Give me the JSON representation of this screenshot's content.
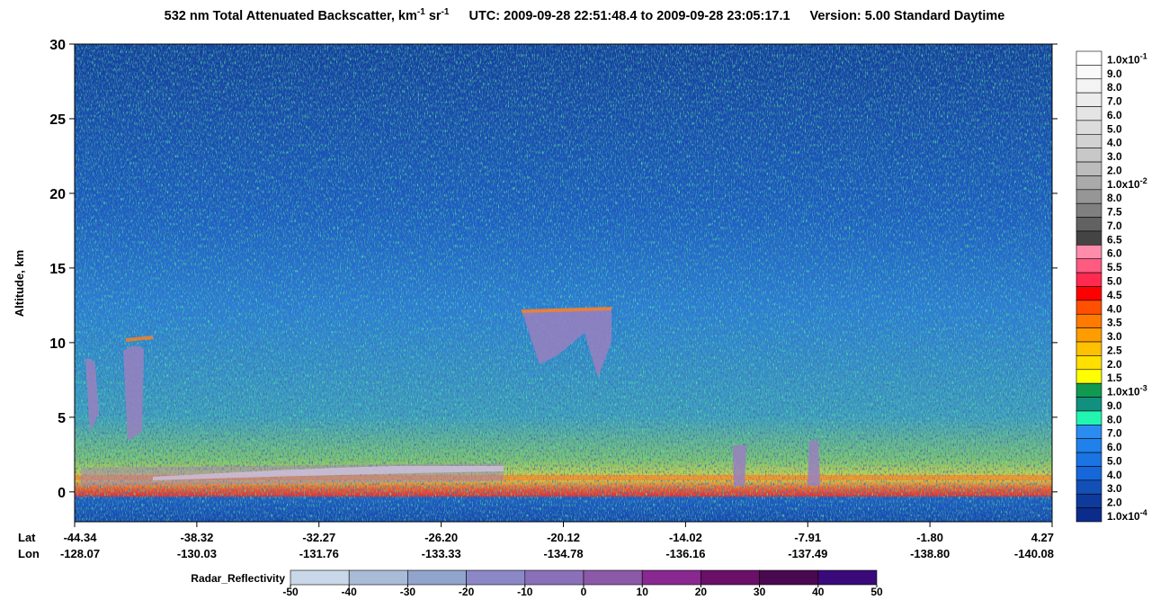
{
  "chart_data": {
    "type": "curtain",
    "title": {
      "main": "532 nm Total Attenuated Backscatter, km",
      "exp1": "-1",
      "unit2": " sr",
      "exp2": "-1",
      "utc": "UTC:  2009-09-28 22:51:48.4  to  2009-09-28 23:05:17.1",
      "version": "Version: 5.00  Standard  Daytime"
    },
    "ylabel": "Altitude, km",
    "ylim": [
      -2,
      30
    ],
    "yticks": [
      0,
      5,
      10,
      15,
      20,
      25,
      30
    ],
    "x_rows": {
      "lat": "Lat",
      "lon": "Lon"
    },
    "x_labels": {
      "lat": [
        "-44.34",
        "-38.32",
        "-32.27",
        "-26.20",
        "-20.12",
        "-14.02",
        "-7.91",
        "-1.80",
        "4.27"
      ],
      "lon": [
        "-128.07",
        "-130.03",
        "-131.76",
        "-133.33",
        "-134.78",
        "-136.16",
        "-137.49",
        "-138.80",
        "-140.08"
      ]
    },
    "colorbar": {
      "levels": [
        {
          "base": "1.0x10",
          "exp": "-1",
          "color": "#ffffff"
        },
        {
          "base": "9.0",
          "color": "#fafafa"
        },
        {
          "base": "8.0",
          "color": "#f3f3f3"
        },
        {
          "base": "7.0",
          "color": "#ececec"
        },
        {
          "base": "6.0",
          "color": "#e4e4e4"
        },
        {
          "base": "5.0",
          "color": "#dcdcdc"
        },
        {
          "base": "4.0",
          "color": "#d2d2d2"
        },
        {
          "base": "3.0",
          "color": "#c8c8c8"
        },
        {
          "base": "2.0",
          "color": "#bcbcbc"
        },
        {
          "base": "1.0x10",
          "exp": "-2",
          "color": "#aaaaaa"
        },
        {
          "base": "8.0",
          "color": "#969696"
        },
        {
          "base": "7.5",
          "color": "#808080"
        },
        {
          "base": "7.0",
          "color": "#626262"
        },
        {
          "base": "6.5",
          "color": "#444444"
        },
        {
          "base": "6.0",
          "color": "#ff8cab"
        },
        {
          "base": "5.5",
          "color": "#ff5a80"
        },
        {
          "base": "5.0",
          "color": "#ff2a50"
        },
        {
          "base": "4.5",
          "color": "#ff0000"
        },
        {
          "base": "4.0",
          "color": "#ff5000"
        },
        {
          "base": "3.5",
          "color": "#ff7a00"
        },
        {
          "base": "3.0",
          "color": "#ff9c00"
        },
        {
          "base": "2.5",
          "color": "#ffc000"
        },
        {
          "base": "2.0",
          "color": "#ffe000"
        },
        {
          "base": "1.5",
          "color": "#ffff00"
        },
        {
          "base": "1.0x10",
          "exp": "-3",
          "color": "#109a50"
        },
        {
          "base": "9.0",
          "color": "#119080"
        },
        {
          "base": "8.0",
          "color": "#22f5b0"
        },
        {
          "base": "7.0",
          "color": "#2a8cf0"
        },
        {
          "base": "6.0",
          "color": "#2080ec"
        },
        {
          "base": "5.0",
          "color": "#1a74e4"
        },
        {
          "base": "4.0",
          "color": "#1668da"
        },
        {
          "base": "3.0",
          "color": "#1250b8"
        },
        {
          "base": "2.0",
          "color": "#0e3a9c"
        },
        {
          "base": "1.0x10",
          "exp": "-4",
          "color": "#0c2c8c"
        }
      ]
    },
    "radar": {
      "label": "Radar_Reflectivity",
      "lim": [
        -50,
        50
      ],
      "ticks": [
        -50,
        -40,
        -30,
        -20,
        -10,
        0,
        10,
        20,
        30,
        40,
        50
      ],
      "colors": [
        "#c8d8e8",
        "#a8bcd8",
        "#90a4cc",
        "#8c88c8",
        "#8a70b8",
        "#8c58a8",
        "#882890",
        "#6a1068",
        "#4a0850",
        "#3a0a7a"
      ]
    }
  }
}
